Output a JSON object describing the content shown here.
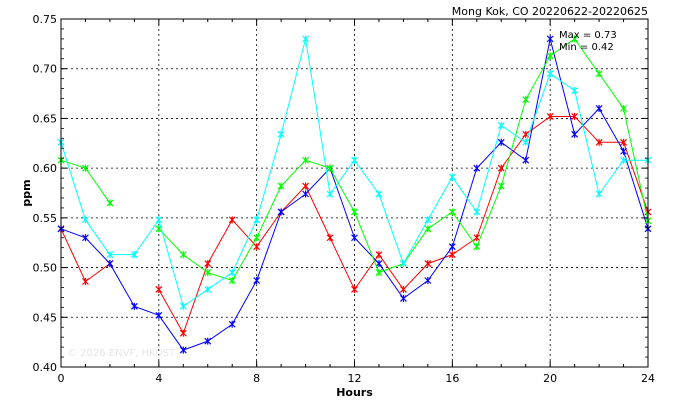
{
  "chart_data": {
    "type": "line",
    "title": "Mong Kok, CO 20220622-20220625",
    "xlabel": "Hours",
    "ylabel": "ppm",
    "xlim": [
      0,
      24
    ],
    "ylim": [
      0.4,
      0.75
    ],
    "xticks": [
      0,
      4,
      8,
      12,
      16,
      20,
      24
    ],
    "xtick_labels": [
      "0",
      "4",
      "8",
      "12",
      "16",
      "20",
      "24"
    ],
    "yticks": [
      0.4,
      0.45,
      0.5,
      0.55,
      0.6,
      0.65,
      0.7,
      0.75
    ],
    "ytick_labels": [
      "0.40",
      "0.45",
      "0.50",
      "0.55",
      "0.60",
      "0.65",
      "0.70",
      "0.75"
    ],
    "grid": true,
    "annotations": {
      "max": "Max = 0.73",
      "min": "Min = 0.42"
    },
    "watermark": "© 2026  ENVF, HKUST",
    "x": [
      0,
      1,
      2,
      3,
      4,
      5,
      6,
      7,
      8,
      9,
      10,
      11,
      12,
      13,
      14,
      15,
      16,
      17,
      18,
      19,
      20,
      21,
      22,
      23,
      24
    ],
    "series": [
      {
        "color": "#ff0000",
        "values": [
          0.539,
          0.486,
          0.504,
          null,
          0.478,
          0.434,
          0.504,
          0.548,
          0.521,
          0.556,
          0.582,
          0.53,
          0.478,
          0.513,
          0.478,
          0.504,
          0.513,
          0.53,
          0.6,
          0.634,
          0.652,
          0.652,
          0.626,
          0.626,
          0.556
        ]
      },
      {
        "color": "#0000ff",
        "values": [
          0.539,
          0.53,
          0.504,
          0.461,
          0.452,
          0.417,
          0.426,
          0.443,
          0.487,
          0.556,
          0.574,
          0.6,
          0.53,
          0.504,
          0.469,
          0.487,
          0.521,
          0.6,
          0.626,
          0.608,
          0.73,
          0.634,
          0.66,
          0.617,
          0.539
        ]
      },
      {
        "color": "#00ff00",
        "values": [
          0.608,
          0.6,
          0.565,
          null,
          0.539,
          0.513,
          0.495,
          0.487,
          0.53,
          0.582,
          0.608,
          0.6,
          0.556,
          0.495,
          0.504,
          0.539,
          0.556,
          0.521,
          0.582,
          0.669,
          0.713,
          0.73,
          0.695,
          0.66,
          0.547
        ]
      },
      {
        "color": "#00ffff",
        "values": [
          0.626,
          0.548,
          0.513,
          0.513,
          0.548,
          0.461,
          0.478,
          0.495,
          0.548,
          0.634,
          0.73,
          0.574,
          0.608,
          0.574,
          0.504,
          0.548,
          0.591,
          0.556,
          0.643,
          0.626,
          0.695,
          0.678,
          0.574,
          0.608,
          0.608
        ]
      }
    ]
  }
}
